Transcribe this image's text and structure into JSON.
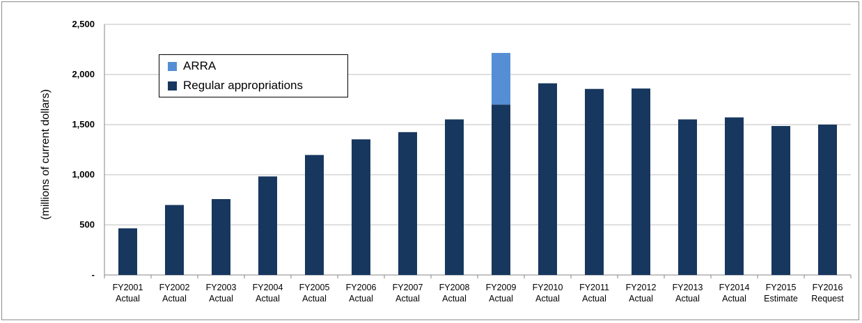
{
  "chart_data": {
    "type": "bar",
    "stacked": true,
    "title": "",
    "xlabel": "",
    "ylabel": "(millions of current dollars)",
    "ylim": [
      0,
      2500
    ],
    "yticks": [
      0,
      500,
      1000,
      1500,
      2000,
      2500
    ],
    "ytick_labels": [
      "-",
      "500",
      "1,000",
      "1,500",
      "2,000",
      "2,500"
    ],
    "grid": true,
    "legend_position": "top-left",
    "categories": [
      [
        "FY2001",
        "Actual"
      ],
      [
        "FY2002",
        "Actual"
      ],
      [
        "FY2003",
        "Actual"
      ],
      [
        "FY2004",
        "Actual"
      ],
      [
        "FY2005",
        "Actual"
      ],
      [
        "FY2006",
        "Actual"
      ],
      [
        "FY2007",
        "Actual"
      ],
      [
        "FY2008",
        "Actual"
      ],
      [
        "FY2009",
        "Actual"
      ],
      [
        "FY2010",
        "Actual"
      ],
      [
        "FY2011",
        "Actual"
      ],
      [
        "FY2012",
        "Actual"
      ],
      [
        "FY2013",
        "Actual"
      ],
      [
        "FY2014",
        "Actual"
      ],
      [
        "FY2015",
        "Estimate"
      ],
      [
        "FY2016",
        "Request"
      ]
    ],
    "series": [
      {
        "name": "Regular appropriations",
        "color": "#17375e",
        "values": [
          465,
          698,
          757,
          983,
          1197,
          1353,
          1425,
          1552,
          1700,
          1912,
          1856,
          1860,
          1552,
          1572,
          1486,
          1500
        ]
      },
      {
        "name": "ARRA",
        "color": "#558ed5",
        "values": [
          0,
          0,
          0,
          0,
          0,
          0,
          0,
          0,
          515,
          0,
          0,
          0,
          0,
          0,
          0,
          0
        ]
      }
    ]
  },
  "legend": {
    "items": [
      {
        "label": "ARRA",
        "color": "#558ed5"
      },
      {
        "label": "Regular appropriations",
        "color": "#17375e"
      }
    ]
  }
}
